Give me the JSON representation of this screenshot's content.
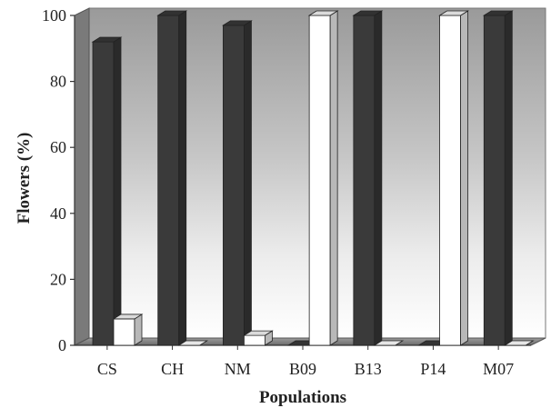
{
  "chart_data": {
    "type": "bar",
    "title": "",
    "xlabel": "Populations",
    "ylabel": "Flowers (%)",
    "ylim": [
      0,
      100
    ],
    "yticks": [
      0,
      20,
      40,
      60,
      80,
      100
    ],
    "categories": [
      "CS",
      "CH",
      "NM",
      "B09",
      "B13",
      "P14",
      "M07"
    ],
    "series": [
      {
        "values": [
          92,
          100,
          97,
          0,
          100,
          0,
          100
        ],
        "color": "#3a3a3a"
      },
      {
        "values": [
          8,
          0,
          3,
          100,
          0,
          100,
          0
        ],
        "color": "#ffffff"
      }
    ],
    "style": "3d",
    "grid": false,
    "legend": "none"
  }
}
